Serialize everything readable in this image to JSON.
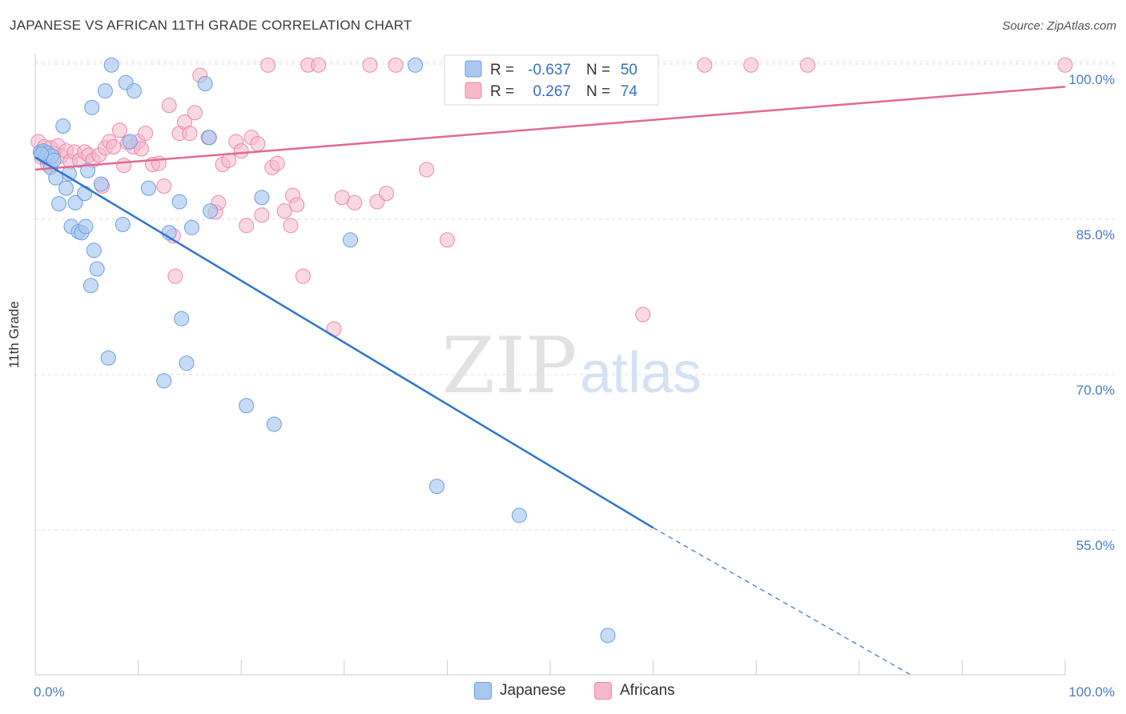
{
  "title": "JAPANESE VS AFRICAN 11TH GRADE CORRELATION CHART",
  "source": "Source: ZipAtlas.com",
  "watermark": {
    "zip": "ZIP",
    "atlas": "atlas"
  },
  "colors": {
    "japanese_fill": "#a8c8f0",
    "japanese_stroke": "#6f9fe0",
    "japanese_line": "#2f74d0",
    "africans_fill": "#f6b8cb",
    "africans_stroke": "#e98aa9",
    "africans_line": "#e26a93",
    "axis_label": "#4a7cc9",
    "grid": "#dcdcdc"
  },
  "legend": {
    "rows": [
      {
        "r_label": "R =",
        "r_value": "-0.637",
        "n_label": "N =",
        "n_value": "50"
      },
      {
        "r_label": "R =",
        "r_value": "0.267",
        "n_label": "N =",
        "n_value": "74"
      }
    ]
  },
  "bottom_legend": {
    "japanese": "Japanese",
    "africans": "Africans"
  },
  "chart_data": {
    "type": "scatter",
    "title": "JAPANESE VS AFRICAN 11TH GRADE CORRELATION CHART",
    "xlabel": "",
    "ylabel": "11th Grade",
    "xlim": [
      0,
      100
    ],
    "ylim": [
      41,
      101
    ],
    "x_tick_labels": [
      "0.0%",
      "100.0%"
    ],
    "y_ticks": [
      55,
      70,
      85,
      100
    ],
    "y_tick_labels": [
      "55.0%",
      "70.0%",
      "85.0%",
      "100.0%"
    ],
    "grid": true,
    "legend_position": "top-center",
    "series": [
      {
        "name": "Japanese",
        "points": [
          [
            0.5,
            91.5
          ],
          [
            0.8,
            91.6
          ],
          [
            1.0,
            91.0
          ],
          [
            1.2,
            91.4
          ],
          [
            1.5,
            90.0
          ],
          [
            1.6,
            91.1
          ],
          [
            2.0,
            89.0
          ],
          [
            2.3,
            86.5
          ],
          [
            2.7,
            94.0
          ],
          [
            3.0,
            88.0
          ],
          [
            3.3,
            89.4
          ],
          [
            3.5,
            84.3
          ],
          [
            3.9,
            86.6
          ],
          [
            4.2,
            83.8
          ],
          [
            4.5,
            83.7
          ],
          [
            4.8,
            87.5
          ],
          [
            4.9,
            84.3
          ],
          [
            5.1,
            89.7
          ],
          [
            5.4,
            78.6
          ],
          [
            5.5,
            95.8
          ],
          [
            5.7,
            82.0
          ],
          [
            6.0,
            80.2
          ],
          [
            6.4,
            88.4
          ],
          [
            6.8,
            97.4
          ],
          [
            7.1,
            71.6
          ],
          [
            7.4,
            99.9
          ],
          [
            8.5,
            84.5
          ],
          [
            8.8,
            98.2
          ],
          [
            9.2,
            92.5
          ],
          [
            9.6,
            97.4
          ],
          [
            11.0,
            88.0
          ],
          [
            12.5,
            69.4
          ],
          [
            13.0,
            83.7
          ],
          [
            14.0,
            86.7
          ],
          [
            14.2,
            75.4
          ],
          [
            14.7,
            71.1
          ],
          [
            15.2,
            84.2
          ],
          [
            16.5,
            98.1
          ],
          [
            16.9,
            92.9
          ],
          [
            17.0,
            85.8
          ],
          [
            20.5,
            67.0
          ],
          [
            22.0,
            87.1
          ],
          [
            23.2,
            65.2
          ],
          [
            30.6,
            83.0
          ],
          [
            36.9,
            99.9
          ],
          [
            39.0,
            59.2
          ],
          [
            47.0,
            56.4
          ],
          [
            55.6,
            44.8
          ],
          [
            0.6,
            91.3
          ],
          [
            1.8,
            90.7
          ]
        ]
      },
      {
        "name": "Africans",
        "points": [
          [
            0.3,
            92.5
          ],
          [
            0.6,
            91.0
          ],
          [
            0.9,
            92.0
          ],
          [
            1.2,
            90.3
          ],
          [
            1.5,
            91.9
          ],
          [
            1.8,
            91.4
          ],
          [
            2.2,
            92.1
          ],
          [
            2.5,
            91.1
          ],
          [
            3.0,
            91.6
          ],
          [
            3.4,
            90.6
          ],
          [
            3.8,
            91.5
          ],
          [
            4.3,
            90.7
          ],
          [
            4.8,
            91.5
          ],
          [
            5.2,
            91.2
          ],
          [
            5.6,
            90.7
          ],
          [
            6.2,
            91.2
          ],
          [
            6.5,
            88.2
          ],
          [
            6.8,
            91.9
          ],
          [
            7.2,
            92.5
          ],
          [
            7.6,
            92.0
          ],
          [
            8.2,
            93.6
          ],
          [
            8.6,
            90.2
          ],
          [
            9.0,
            92.4
          ],
          [
            9.5,
            92.0
          ],
          [
            10.0,
            92.5
          ],
          [
            10.3,
            91.8
          ],
          [
            10.7,
            93.3
          ],
          [
            11.4,
            90.3
          ],
          [
            12.0,
            90.4
          ],
          [
            12.5,
            88.2
          ],
          [
            13.0,
            96.0
          ],
          [
            13.4,
            83.4
          ],
          [
            13.6,
            79.5
          ],
          [
            14.0,
            93.3
          ],
          [
            14.5,
            94.4
          ],
          [
            15.0,
            93.3
          ],
          [
            15.5,
            95.3
          ],
          [
            16.0,
            98.9
          ],
          [
            16.8,
            92.9
          ],
          [
            17.5,
            85.7
          ],
          [
            17.8,
            86.6
          ],
          [
            18.2,
            90.3
          ],
          [
            18.8,
            90.7
          ],
          [
            19.5,
            92.5
          ],
          [
            20.0,
            91.6
          ],
          [
            20.5,
            84.4
          ],
          [
            21.0,
            92.9
          ],
          [
            21.6,
            92.3
          ],
          [
            22.0,
            85.4
          ],
          [
            22.6,
            99.9
          ],
          [
            23.0,
            90.0
          ],
          [
            23.5,
            90.4
          ],
          [
            24.2,
            85.8
          ],
          [
            24.8,
            84.4
          ],
          [
            25.0,
            87.3
          ],
          [
            25.4,
            86.4
          ],
          [
            26.0,
            79.5
          ],
          [
            26.5,
            99.9
          ],
          [
            27.5,
            99.9
          ],
          [
            29.0,
            74.4
          ],
          [
            29.8,
            87.1
          ],
          [
            31.0,
            86.6
          ],
          [
            32.5,
            99.9
          ],
          [
            33.2,
            86.7
          ],
          [
            34.1,
            87.5
          ],
          [
            35.0,
            99.9
          ],
          [
            38.0,
            89.8
          ],
          [
            40.0,
            83.0
          ],
          [
            45.5,
            99.9
          ],
          [
            59.0,
            75.8
          ],
          [
            65.0,
            99.9
          ],
          [
            69.5,
            99.9
          ],
          [
            75.0,
            99.9
          ],
          [
            100.0,
            99.9
          ]
        ]
      }
    ],
    "trendlines": [
      {
        "series": "Japanese",
        "solid": [
          [
            0,
            91.0
          ],
          [
            60,
            55.2
          ]
        ],
        "dashed": [
          [
            60,
            55.2
          ],
          [
            85,
            40.5
          ]
        ]
      },
      {
        "series": "Africans",
        "solid": [
          [
            0,
            89.8
          ],
          [
            100,
            97.8
          ]
        ]
      }
    ]
  }
}
